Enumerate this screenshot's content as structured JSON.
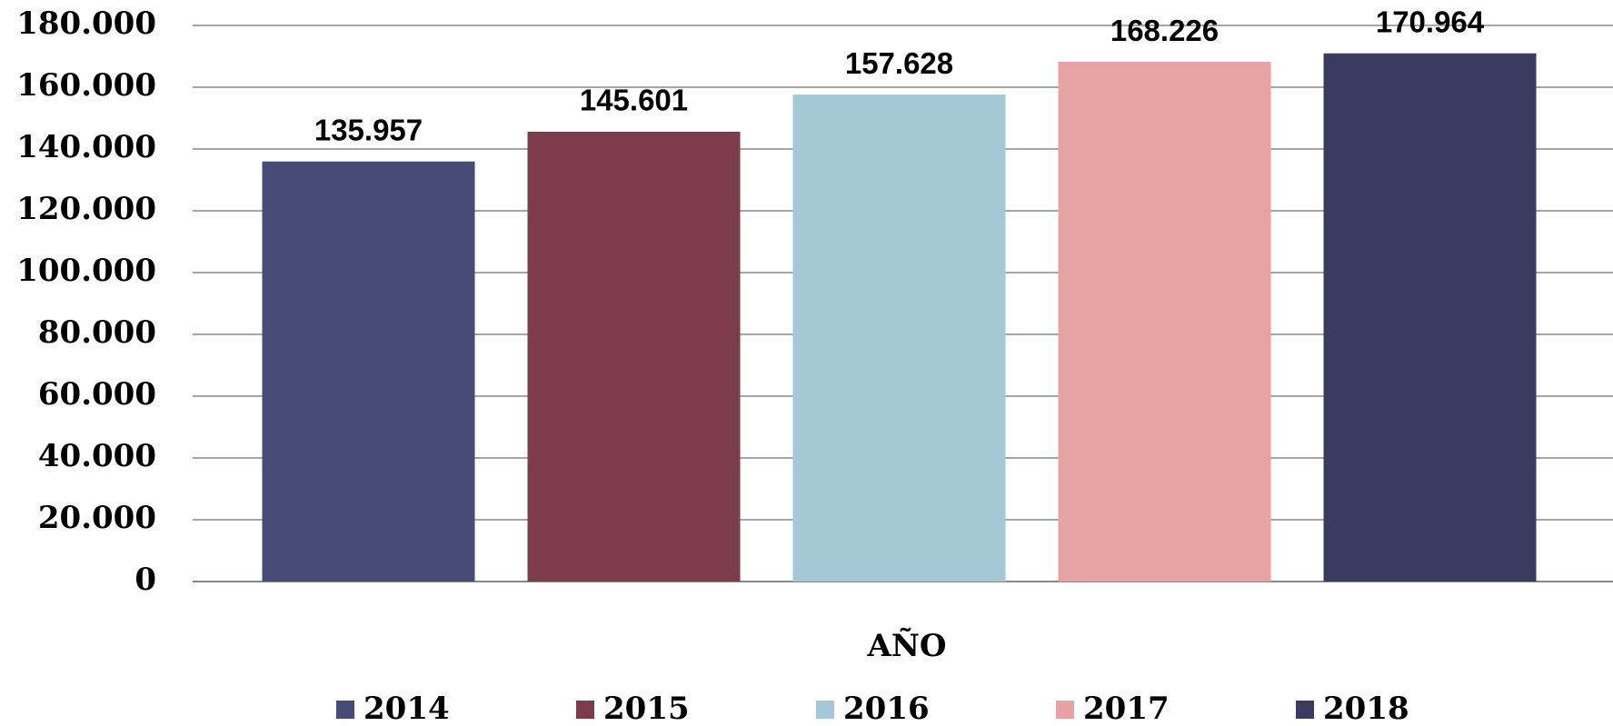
{
  "chart_data": {
    "type": "bar",
    "x_label": "AÑO",
    "categories": [
      null
    ],
    "series": [
      {
        "name": "2014",
        "color": "#474c77",
        "values": [
          135957
        ],
        "value_labels": [
          "135.957"
        ]
      },
      {
        "name": "2015",
        "color": "#7c3c4b",
        "values": [
          145601
        ],
        "value_labels": [
          "145.601"
        ]
      },
      {
        "name": "2016",
        "color": "#a5c8d7",
        "values": [
          157628
        ],
        "value_labels": [
          "157.628"
        ]
      },
      {
        "name": "2017",
        "color": "#e8a2a3",
        "values": [
          168226
        ],
        "value_labels": [
          "168.226"
        ]
      },
      {
        "name": "2018",
        "color": "#3b3b62",
        "values": [
          170964
        ],
        "value_labels": [
          "170.964"
        ]
      }
    ],
    "ylim": [
      0,
      180000
    ],
    "yticks": [
      0,
      {
        "value": 20000,
        "label": "20.000"
      },
      {
        "value": 40000,
        "label": "40.000"
      },
      {
        "value": 60000,
        "label": "60.000"
      },
      {
        "value": 80000,
        "label": "80.000"
      },
      {
        "value": 100000,
        "label": "100.000"
      },
      {
        "value": 120000,
        "label": "120.000"
      },
      {
        "value": 140000,
        "label": "140.000"
      },
      {
        "value": 160000,
        "label": "160.000"
      },
      {
        "value": 180000,
        "label": "180.000"
      }
    ],
    "grid": true,
    "legend": "bottom"
  }
}
